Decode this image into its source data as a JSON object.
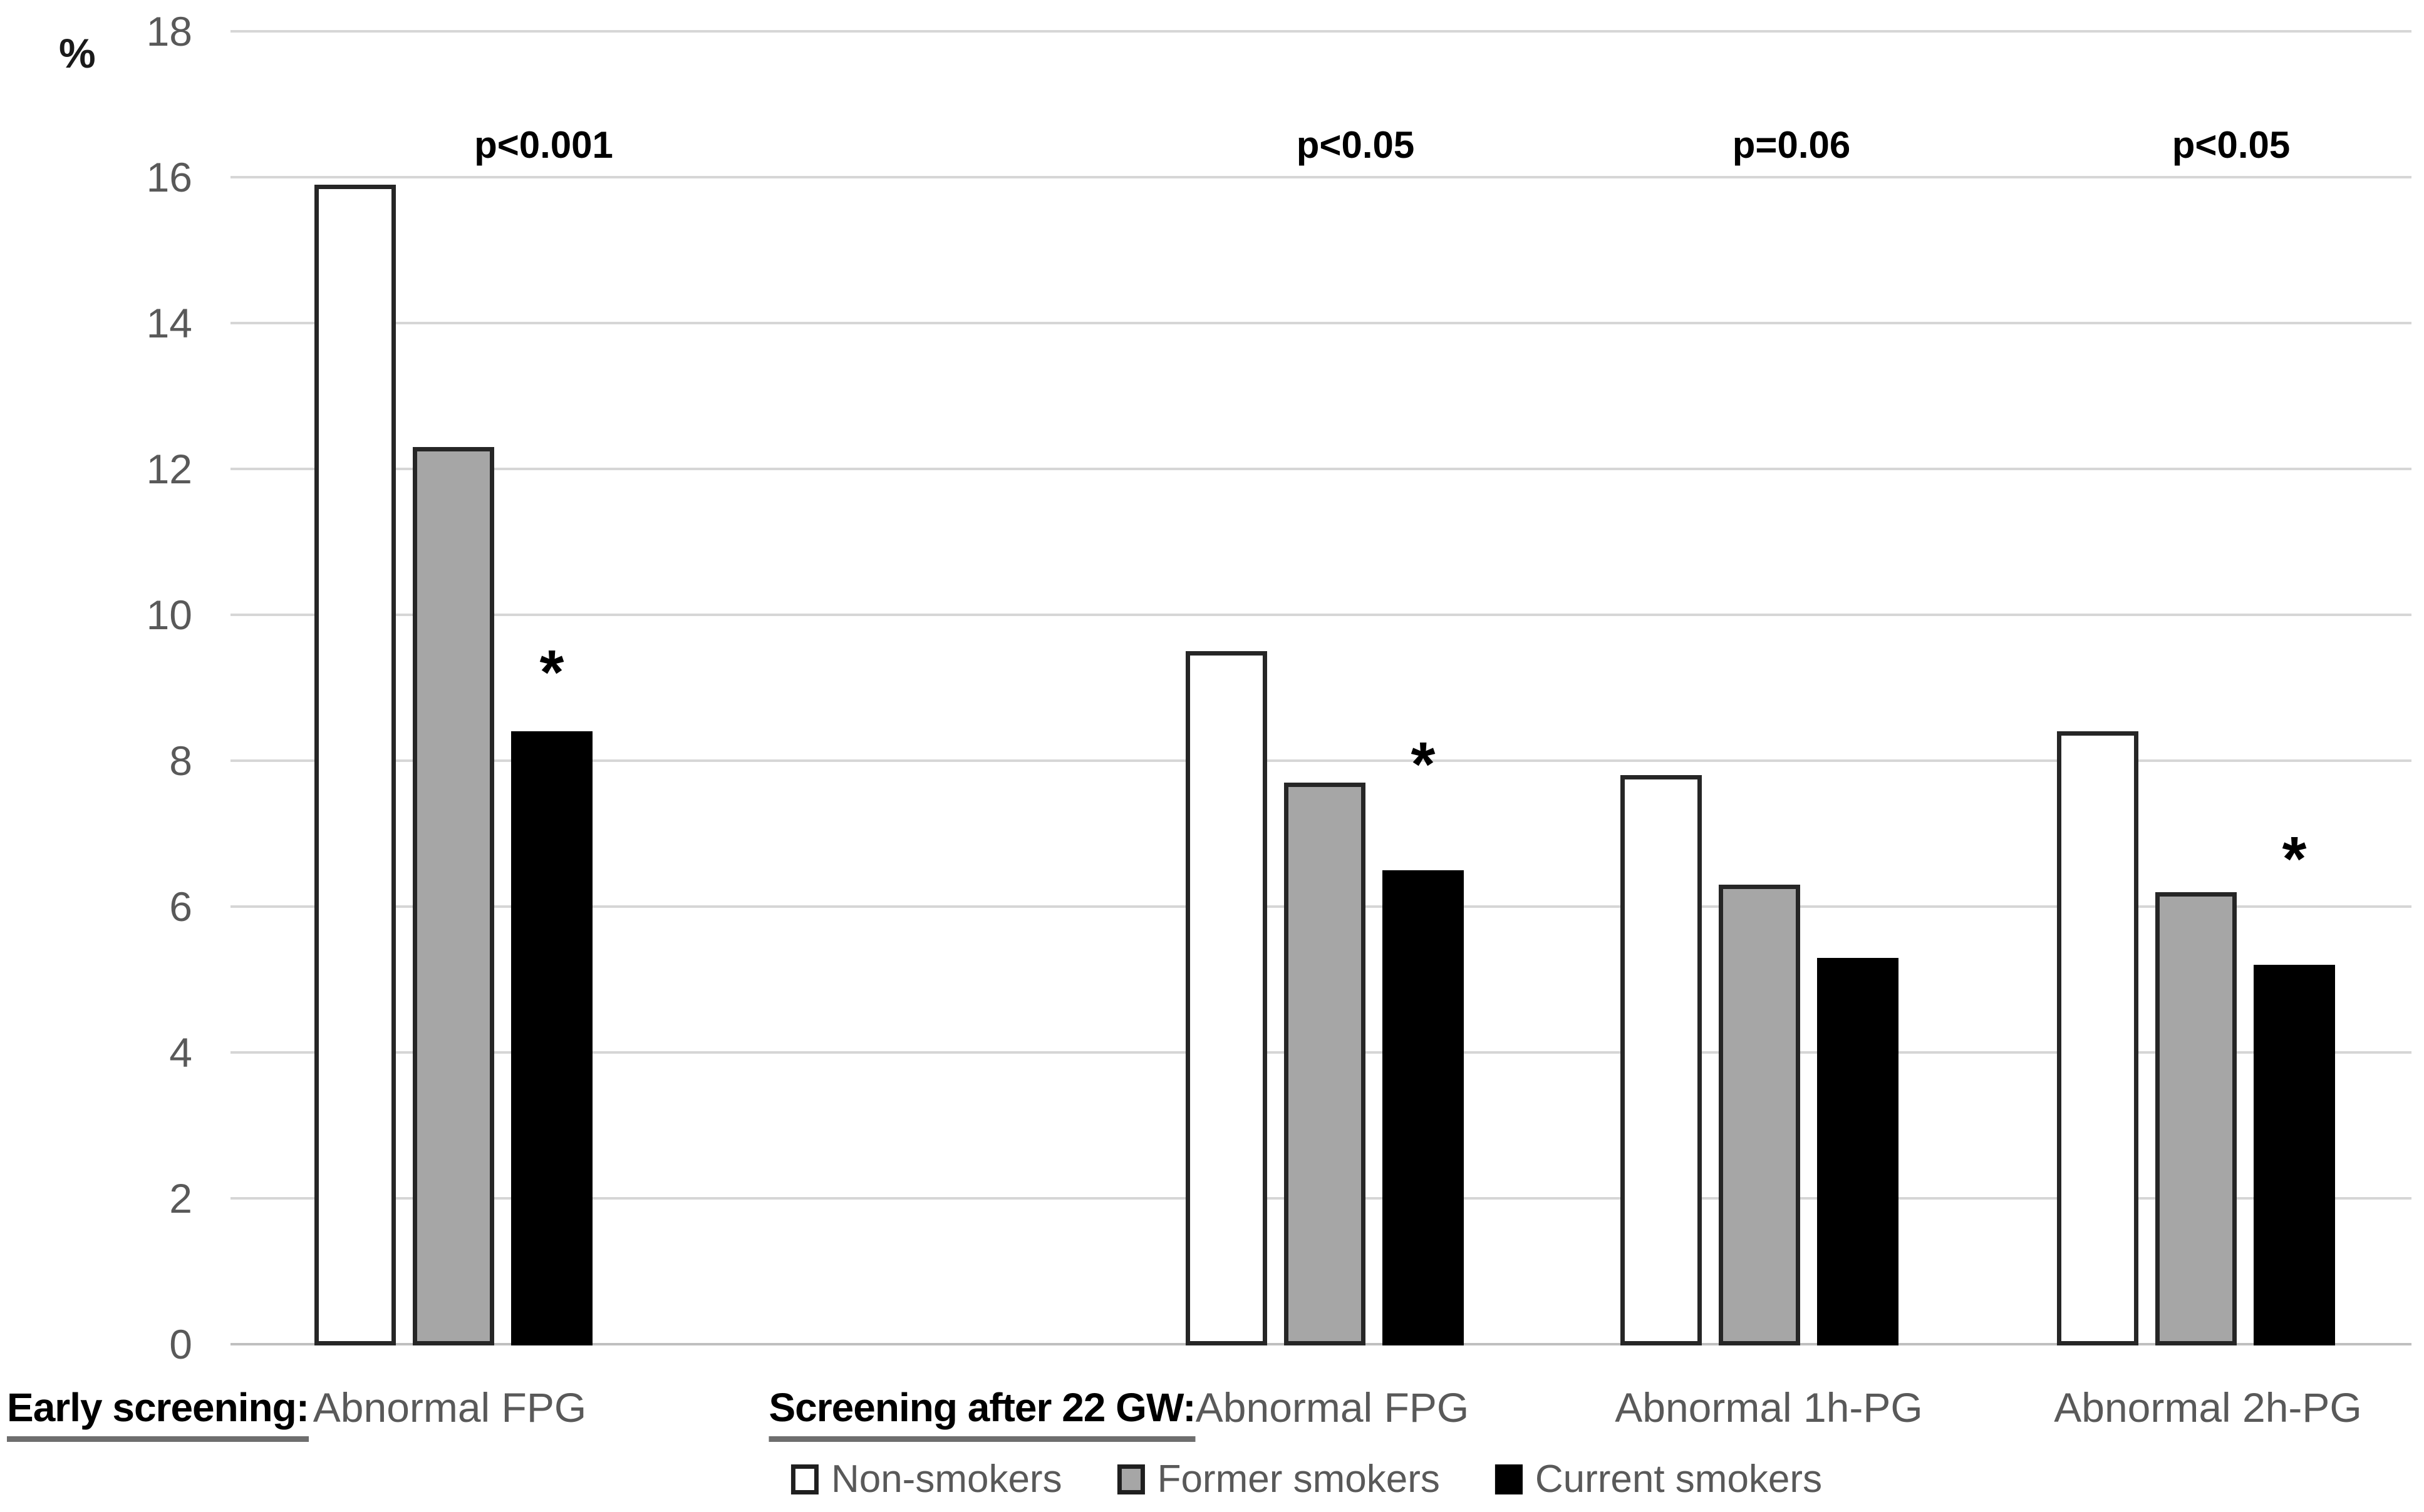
{
  "chart_data": {
    "type": "bar",
    "title": "",
    "ylabel": "%",
    "ylim": [
      0,
      18
    ],
    "yticks": [
      0,
      2,
      4,
      6,
      8,
      10,
      12,
      14,
      16,
      18
    ],
    "grid": true,
    "legend_position": "bottom",
    "categories": [
      "Abnormal FPG",
      "Abnormal FPG",
      "Abnormal 1h-PG",
      "Abnormal 2h-PG"
    ],
    "x_axis_sections": [
      {
        "label": "Early screening:",
        "categories": [
          "Abnormal FPG"
        ]
      },
      {
        "label": "Screening after 22 GW:",
        "categories": [
          "Abnormal FPG",
          "Abnormal 1h-PG",
          "Abnormal 2h-PG"
        ]
      }
    ],
    "series": [
      {
        "name": "Non-smokers",
        "fill": "#ffffff",
        "border": "#262626",
        "values": [
          15.9,
          9.5,
          7.8,
          8.4
        ]
      },
      {
        "name": "Former smokers",
        "fill": "#a6a6a6",
        "border": "#262626",
        "values": [
          12.3,
          7.7,
          6.3,
          6.2
        ]
      },
      {
        "name": "Current smokers",
        "fill": "#000000",
        "border": "#000000",
        "values": [
          8.4,
          6.5,
          5.3,
          5.2
        ]
      }
    ],
    "annotations": {
      "p_values": [
        "p<0.001",
        "p<0.05",
        "p=0.06",
        "p<0.05"
      ],
      "asterisk_symbol": "*",
      "asterisk_on_series": "Current smokers",
      "asterisks": [
        true,
        true,
        false,
        true
      ]
    },
    "colors": {
      "background": "#ffffff",
      "gridline": "#d6d6d6",
      "axis_line": "#bfbfbf",
      "tick_label": "#595959",
      "category_label": "#595959",
      "section_label": "#000000",
      "p_value": "#000000",
      "legend_label": "#595959"
    }
  }
}
